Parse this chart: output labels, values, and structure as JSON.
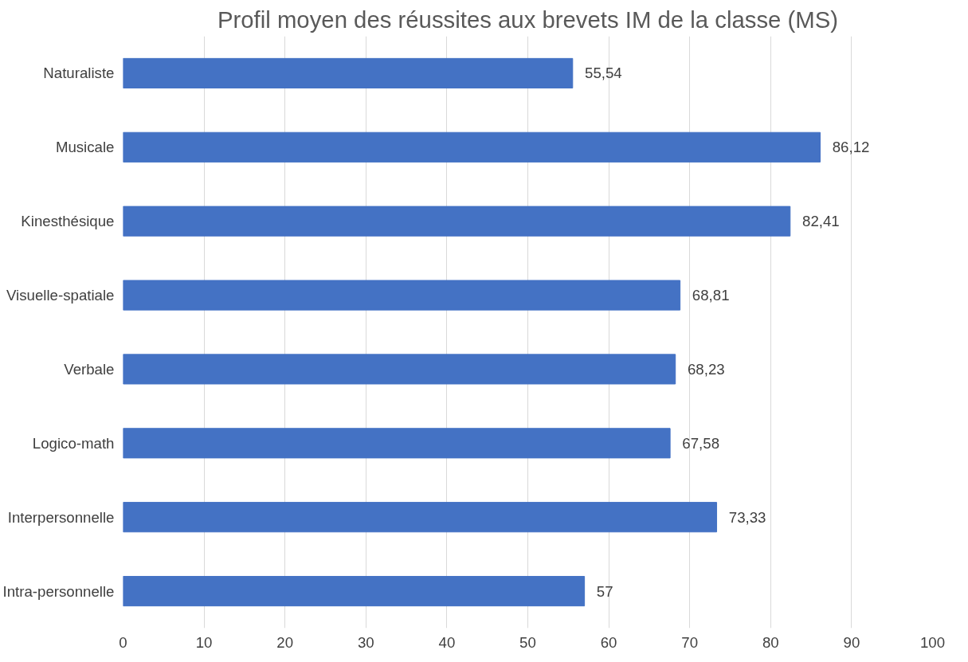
{
  "chart_data": {
    "type": "bar",
    "orientation": "horizontal",
    "title": "Profil moyen des réussites aux brevets IM de la classe (MS)",
    "categories": [
      "Naturaliste",
      "Musicale",
      "Kinesthésique",
      "Visuelle-spatiale",
      "Verbale",
      "Logico-math",
      "Interpersonnelle",
      "Intra-personnelle"
    ],
    "values": [
      55.54,
      86.12,
      82.41,
      68.81,
      68.23,
      67.58,
      73.33,
      57
    ],
    "value_labels": [
      "55,54",
      "86,12",
      "82,41",
      "68,81",
      "68,23",
      "67,58",
      "73,33",
      "57"
    ],
    "color": "#4472c4",
    "xlim": [
      0,
      100
    ],
    "xticks": [
      0,
      10,
      20,
      30,
      40,
      50,
      60,
      70,
      80,
      90,
      100
    ],
    "grid": "x"
  }
}
